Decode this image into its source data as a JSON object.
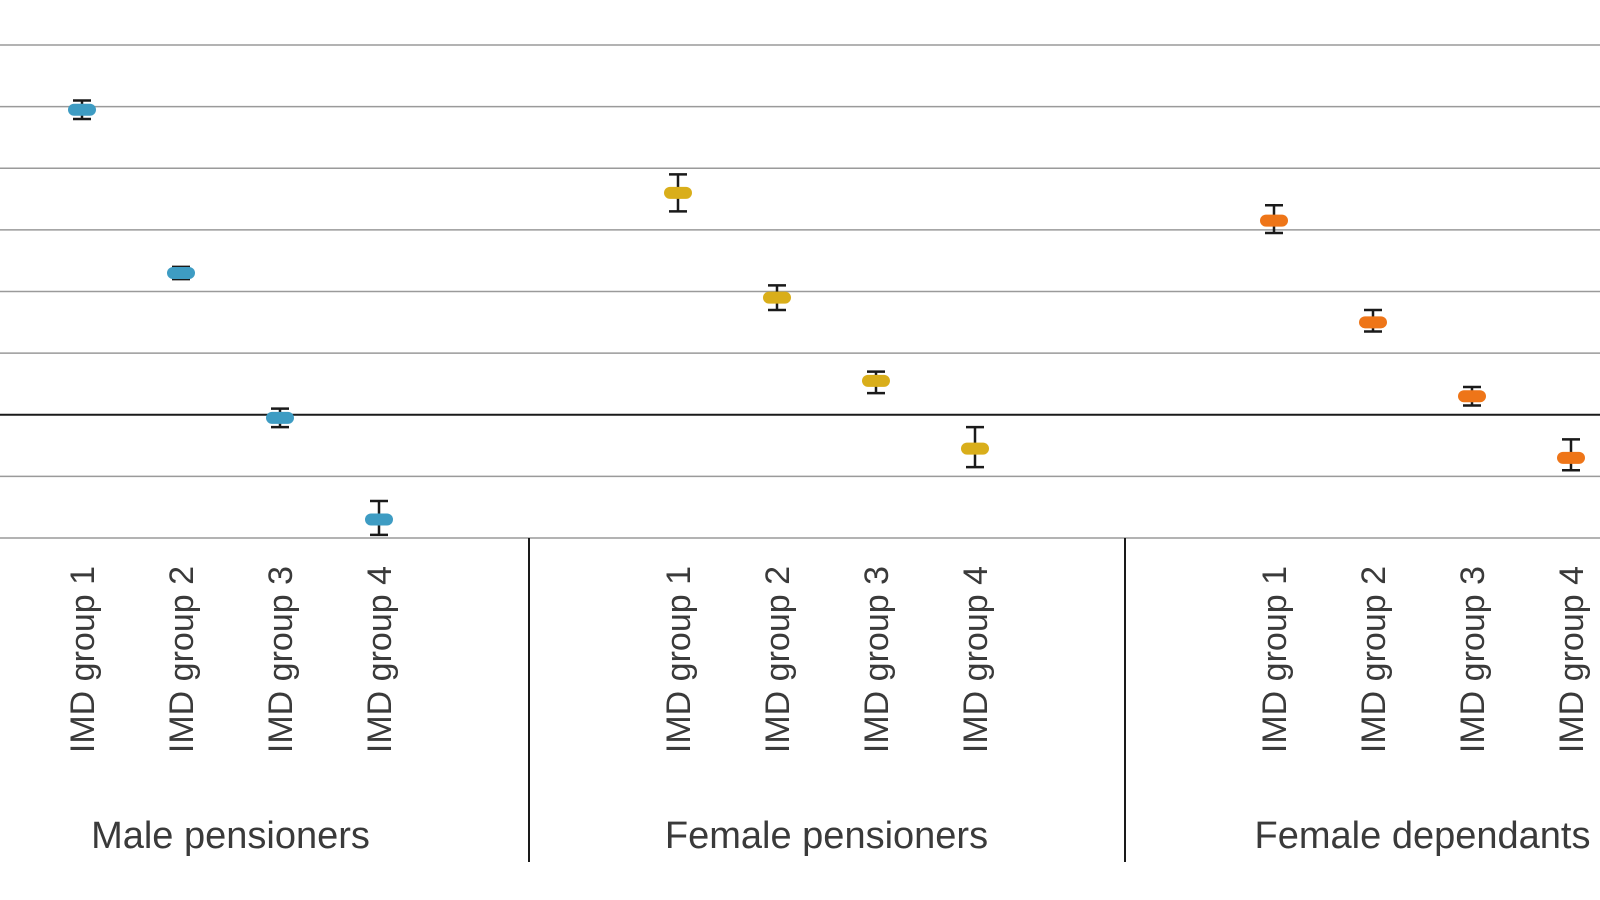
{
  "chart_data": {
    "type": "scatter",
    "title": "",
    "xlabel": "",
    "ylabel": "",
    "y_tick_values": [
      -2,
      -1,
      0,
      1,
      2,
      3,
      4,
      5,
      6
    ],
    "ylim": [
      -2,
      6
    ],
    "grid": true,
    "reference_line": 0,
    "legend": "none",
    "error_bar_color": "#1a1a1a",
    "gridline_color": "#9a9a9a",
    "axis_line_color": "#1a1a1a",
    "groups": [
      {
        "label": "Male pensioners",
        "color": "#3e9cc3",
        "categories": [
          "IMD group 1",
          "IMD group 2",
          "IMD group 3",
          "IMD group 4"
        ],
        "values": [
          4.95,
          2.3,
          -0.05,
          -1.7
        ],
        "ci_low": [
          4.8,
          2.2,
          -0.2,
          -1.95
        ],
        "ci_high": [
          5.1,
          2.4,
          0.1,
          -1.4
        ]
      },
      {
        "label": "Female pensioners",
        "color": "#d9ae1a",
        "categories": [
          "IMD group 1",
          "IMD group 2",
          "IMD group 3",
          "IMD group 4"
        ],
        "values": [
          3.6,
          1.9,
          0.55,
          -0.55
        ],
        "ci_low": [
          3.3,
          1.7,
          0.35,
          -0.85
        ],
        "ci_high": [
          3.9,
          2.1,
          0.7,
          -0.2
        ]
      },
      {
        "label": "Female dependants",
        "color": "#ee7518",
        "categories": [
          "IMD group 1",
          "IMD group 2",
          "IMD group 3",
          "IMD group 4"
        ],
        "values": [
          3.15,
          1.5,
          0.3,
          -0.7
        ],
        "ci_low": [
          2.95,
          1.35,
          0.15,
          -0.9
        ],
        "ci_high": [
          3.4,
          1.7,
          0.45,
          -0.4
        ]
      }
    ]
  }
}
